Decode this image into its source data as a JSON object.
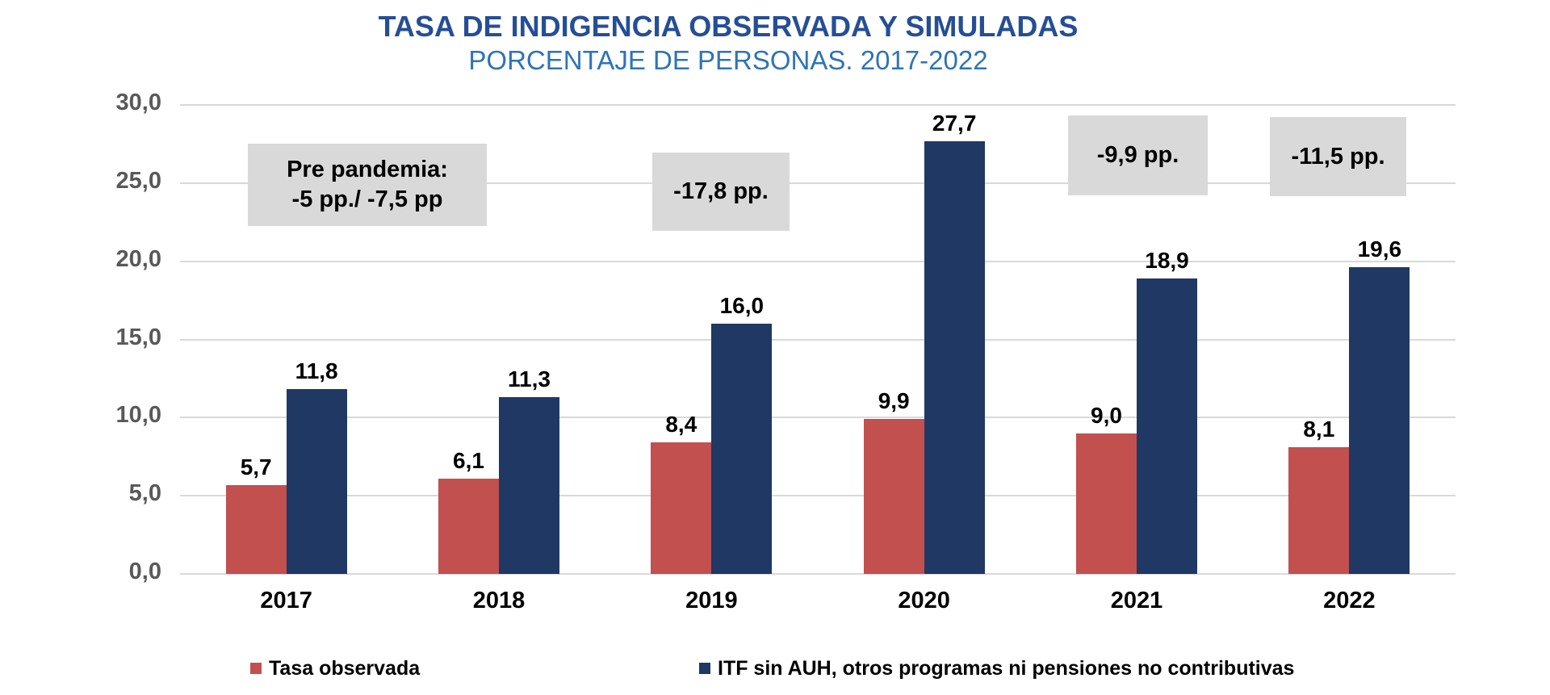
{
  "header": {
    "title": "TASA DE INDIGENCIA OBSERVADA Y SIMULADAS",
    "subtitle": "PORCENTAJE DE PERSONAS. 2017-2022"
  },
  "notes": {
    "pre_line1": "Pre pandemia:",
    "pre_line2": "-5 pp./ -7,5 pp",
    "n2019": "-17,8 pp.",
    "n2021": "-9,9 pp.",
    "n2022": "-11,5 pp."
  },
  "legend": {
    "items": [
      {
        "label": "Tasa observada",
        "color": "#C1504E"
      },
      {
        "label": "ITF sin AUH, otros programas ni pensiones no contributivas",
        "color": "#1F3864"
      }
    ]
  },
  "colors": {
    "series_red": "#C1504E",
    "series_navy": "#1F3864",
    "gridline": "#D9D9D9",
    "annotation_bg": "#D9D9D9",
    "title_blue": "#254E96",
    "subtitle_blue": "#2E74B5",
    "yaxis_text": "#595959"
  },
  "chart_data": {
    "type": "bar",
    "title": "TASA DE INDIGENCIA OBSERVADA Y SIMULADAS",
    "subtitle": "PORCENTAJE DE PERSONAS. 2017-2022",
    "categories": [
      "2017",
      "2018",
      "2019",
      "2020",
      "2021",
      "2022"
    ],
    "series": [
      {
        "name": "Tasa observada",
        "color": "#C1504E",
        "values": [
          5.7,
          6.1,
          8.4,
          9.9,
          9.0,
          8.1
        ],
        "labels": [
          "5,7",
          "6,1",
          "8,4",
          "9,9",
          "9,0",
          "8,1"
        ]
      },
      {
        "name": "ITF sin AUH, otros programas ni pensiones no contributivas",
        "color": "#1F3864",
        "values": [
          11.8,
          11.3,
          16.0,
          27.7,
          18.9,
          19.6
        ],
        "labels": [
          "11,8",
          "11,3",
          "16,0",
          "27,7",
          "18,9",
          "19,6"
        ]
      }
    ],
    "xlabel": "",
    "ylabel": "",
    "ylim": [
      0,
      30
    ],
    "ytick_values": [
      0,
      5,
      10,
      15,
      20,
      25,
      30
    ],
    "ytick_labels": [
      "0,0",
      "5,0",
      "10,0",
      "15,0",
      "20,0",
      "25,0",
      "30,0"
    ],
    "grid": true,
    "legend_position": "bottom",
    "annotations": [
      {
        "text": "Pre pandemia: -5 pp./ -7,5 pp",
        "over": [
          "2017",
          "2018"
        ]
      },
      {
        "text": "-17,8 pp.",
        "over": [
          "2019"
        ]
      },
      {
        "text": "-9,9 pp.",
        "over": [
          "2021"
        ]
      },
      {
        "text": "-11,5 pp.",
        "over": [
          "2022"
        ]
      }
    ]
  }
}
